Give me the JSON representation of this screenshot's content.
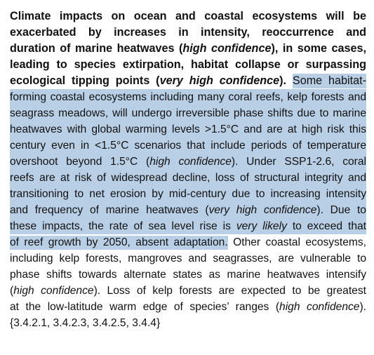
{
  "highlight_color": "#b9cfe6",
  "text_color": "#111111",
  "lines": [
    {
      "bold": true,
      "segments": [
        {
          "t": "Climate impacts on ocean and coastal ecosystems will be",
          "i": false,
          "h": false
        }
      ]
    },
    {
      "bold": true,
      "segments": [
        {
          "t": "exacerbated by increases in intensity, reoccurrence and",
          "i": false,
          "h": false
        }
      ]
    },
    {
      "bold": true,
      "segments": [
        {
          "t": "duration of marine heatwaves (",
          "i": false,
          "h": false
        },
        {
          "t": "high confidence",
          "i": true,
          "h": false
        },
        {
          "t": "), in some cases,",
          "i": false,
          "h": false
        }
      ]
    },
    {
      "bold": true,
      "segments": [
        {
          "t": "leading to species extirpation, habitat collapse or surpassing",
          "i": false,
          "h": false
        }
      ]
    },
    {
      "bold": true,
      "segments": [
        {
          "t": "ecological tipping points (",
          "i": false,
          "h": false
        },
        {
          "t": "very high confidence",
          "i": true,
          "h": false
        },
        {
          "t": "). ",
          "i": false,
          "h": false
        },
        {
          "t": "Some habitat-",
          "i": false,
          "h": true,
          "nb": true
        }
      ]
    },
    {
      "bold": false,
      "segments": [
        {
          "t": "forming coastal ecosystems including many coral reefs, kelp forests and",
          "i": false,
          "h": true
        }
      ]
    },
    {
      "bold": false,
      "segments": [
        {
          "t": "seagrass meadows, will undergo irreversible phase shifts due to marine",
          "i": false,
          "h": true
        }
      ]
    },
    {
      "bold": false,
      "segments": [
        {
          "t": "heatwaves with global warming levels >1.5°C and are at high risk this",
          "i": false,
          "h": true
        }
      ]
    },
    {
      "bold": false,
      "segments": [
        {
          "t": "century even in <1.5°C scenarios that include periods of temperature",
          "i": false,
          "h": true
        }
      ]
    },
    {
      "bold": false,
      "segments": [
        {
          "t": "overshoot beyond 1.5°C (",
          "i": false,
          "h": true
        },
        {
          "t": "high confidence",
          "i": true,
          "h": true
        },
        {
          "t": "). Under SSP1-2.6, coral",
          "i": false,
          "h": true
        }
      ]
    },
    {
      "bold": false,
      "segments": [
        {
          "t": "reefs are at risk of widespread decline, loss of structural integrity and",
          "i": false,
          "h": true
        }
      ]
    },
    {
      "bold": false,
      "segments": [
        {
          "t": "transitioning to net erosion by mid-century due to increasing intensity",
          "i": false,
          "h": true
        }
      ]
    },
    {
      "bold": false,
      "segments": [
        {
          "t": "and frequency of marine heatwaves (",
          "i": false,
          "h": true
        },
        {
          "t": "very high confidence",
          "i": true,
          "h": true
        },
        {
          "t": "). Due to",
          "i": false,
          "h": true
        }
      ]
    },
    {
      "bold": false,
      "segments": [
        {
          "t": "these impacts, the rate of sea level rise is ",
          "i": false,
          "h": true
        },
        {
          "t": "very likely",
          "i": true,
          "h": true
        },
        {
          "t": " to exceed that",
          "i": false,
          "h": true
        }
      ]
    },
    {
      "bold": false,
      "segments": [
        {
          "t": "of reef growth by 2050, absent adaptation.",
          "i": false,
          "h": true
        },
        {
          "t": " Other coastal ecosystems,",
          "i": false,
          "h": false
        }
      ]
    },
    {
      "bold": false,
      "segments": [
        {
          "t": "including kelp forests, mangroves and seagrasses, are vulnerable to",
          "i": false,
          "h": false
        }
      ]
    },
    {
      "bold": false,
      "segments": [
        {
          "t": "phase shifts towards alternate states as marine heatwaves intensify",
          "i": false,
          "h": false
        }
      ]
    },
    {
      "bold": false,
      "segments": [
        {
          "t": "(",
          "i": false,
          "h": false
        },
        {
          "t": "high confidence",
          "i": true,
          "h": false
        },
        {
          "t": "). Loss of kelp forests are expected to be greatest",
          "i": false,
          "h": false
        }
      ]
    },
    {
      "bold": false,
      "segments": [
        {
          "t": "at the low-latitude warm edge of species’ ranges (",
          "i": false,
          "h": false
        },
        {
          "t": "high confidence",
          "i": true,
          "h": false
        },
        {
          "t": ").",
          "i": false,
          "h": false
        }
      ]
    },
    {
      "bold": false,
      "last": true,
      "segments": [
        {
          "t": "{3.4.2.1, 3.4.2.3, 3.4.2.5, 3.4.4}",
          "i": false,
          "h": false
        }
      ]
    }
  ]
}
